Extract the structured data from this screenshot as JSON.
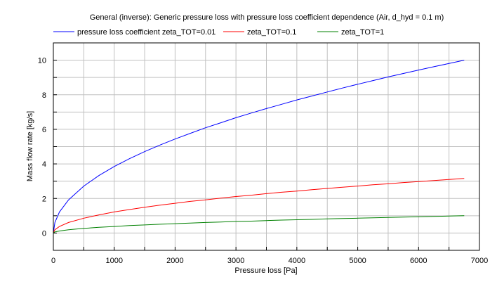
{
  "chart_data": {
    "type": "line",
    "title": "General (inverse): Generic pressure loss with pressure loss coefficient dependence (Air, d_hyd = 0.1 m)",
    "xlabel": "Pressure loss [Pa]",
    "ylabel": "Mass flow rate [kg/s]",
    "xlim": [
      0,
      7000
    ],
    "ylim": [
      -1,
      11
    ],
    "xticks": [
      0,
      1000,
      2000,
      3000,
      4000,
      5000,
      6000,
      7000
    ],
    "yticks": [
      0,
      2,
      4,
      6,
      8,
      10
    ],
    "grid": true,
    "legend_position": "top",
    "x": [
      0,
      25,
      100,
      250,
      500,
      750,
      1000,
      1250,
      1500,
      1750,
      2000,
      2250,
      2500,
      2750,
      3000,
      3250,
      3500,
      3750,
      4000,
      4250,
      4500,
      4750,
      5000,
      5250,
      5500,
      5750,
      6000,
      6250,
      6500,
      6750
    ],
    "series": [
      {
        "name": "pressure loss coefficient zeta_TOT=0.01",
        "color": "#0000ff",
        "values": [
          0,
          0.61,
          1.22,
          1.92,
          2.72,
          3.33,
          3.85,
          4.3,
          4.71,
          5.09,
          5.44,
          5.77,
          6.09,
          6.38,
          6.67,
          6.94,
          7.2,
          7.45,
          7.7,
          7.93,
          8.16,
          8.39,
          8.61,
          8.82,
          9.03,
          9.23,
          9.43,
          9.62,
          9.81,
          10.0
        ]
      },
      {
        "name": "zeta_TOT=0.1",
        "color": "#ff0000",
        "values": [
          0,
          0.19,
          0.38,
          0.61,
          0.86,
          1.05,
          1.22,
          1.36,
          1.49,
          1.61,
          1.72,
          1.83,
          1.92,
          2.02,
          2.11,
          2.19,
          2.28,
          2.36,
          2.43,
          2.51,
          2.58,
          2.65,
          2.72,
          2.79,
          2.85,
          2.92,
          2.98,
          3.04,
          3.1,
          3.16
        ]
      },
      {
        "name": "zeta_TOT=1",
        "color": "#008000",
        "values": [
          0,
          0.06,
          0.12,
          0.19,
          0.27,
          0.33,
          0.38,
          0.43,
          0.47,
          0.51,
          0.54,
          0.58,
          0.61,
          0.64,
          0.67,
          0.69,
          0.72,
          0.75,
          0.77,
          0.79,
          0.82,
          0.84,
          0.86,
          0.88,
          0.9,
          0.92,
          0.94,
          0.96,
          0.98,
          1.0
        ]
      }
    ]
  }
}
